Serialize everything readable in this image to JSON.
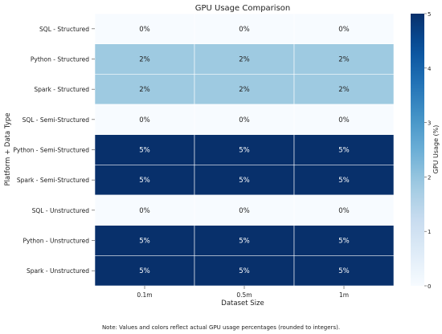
{
  "chart_data": {
    "type": "heatmap",
    "title": "GPU Usage Comparison",
    "xlabel": "Dataset Size",
    "ylabel": "Platform + Data Type",
    "x": [
      "0.1m",
      "0.5m",
      "1m"
    ],
    "y": [
      "SQL - Structured",
      "Python - Structured",
      "Spark - Structured",
      "SQL - Semi-Structured",
      "Python - Semi-Structured",
      "Spark - Semi-Structured",
      "SQL - Unstructured",
      "Python - Unstructured",
      "Spark - Unstructured"
    ],
    "values": [
      [
        0,
        0,
        0
      ],
      [
        2,
        2,
        2
      ],
      [
        2,
        2,
        2
      ],
      [
        0,
        0,
        0
      ],
      [
        5,
        5,
        5
      ],
      [
        5,
        5,
        5
      ],
      [
        0,
        0,
        0
      ],
      [
        5,
        5,
        5
      ],
      [
        5,
        5,
        5
      ]
    ],
    "value_suffix": "%",
    "colorbar": {
      "label": "GPU Usage (%)",
      "range": [
        0,
        5
      ],
      "ticks": [
        0,
        1,
        2,
        3,
        4,
        5
      ],
      "colormap": "Blues",
      "colors": {
        "0": "#f7fbff",
        "2": "#9ecae1",
        "5": "#08306b"
      }
    }
  },
  "footnote": "Note: Values and colors reflect actual GPU usage percentages (rounded to integers)."
}
